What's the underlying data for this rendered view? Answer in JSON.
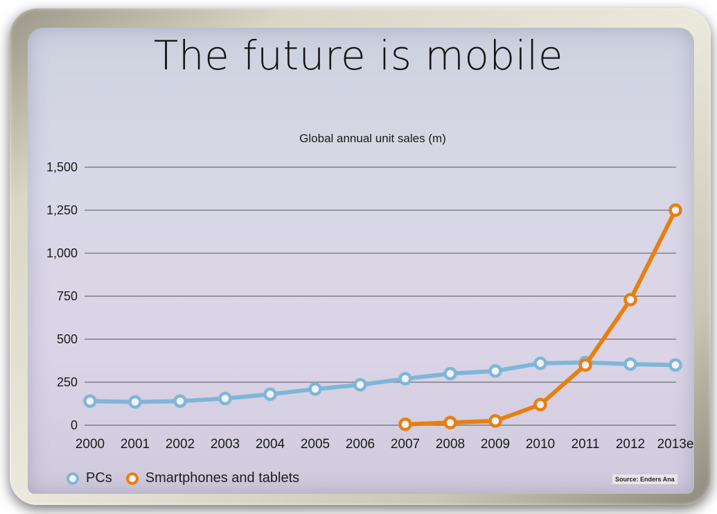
{
  "slide": {
    "title": "The future is mobile",
    "source": "Source: Enders Ana"
  },
  "colors": {
    "pcs": "#7fb6d8",
    "smartphones": "#e87f10",
    "grid": "#6e6e78",
    "text": "#1a1a1a"
  },
  "chart_data": {
    "type": "line",
    "title": "Global annual unit sales (m)",
    "xlabel": "",
    "ylabel": "",
    "categories": [
      "2000",
      "2001",
      "2002",
      "2003",
      "2004",
      "2005",
      "2006",
      "2007",
      "2008",
      "2009",
      "2010",
      "2011",
      "2012",
      "2013e"
    ],
    "ylim": [
      0,
      1500
    ],
    "yticks": [
      0,
      250,
      500,
      750,
      1000,
      1250,
      1500
    ],
    "ytick_labels": [
      "0",
      "250",
      "500",
      "750",
      "1,000",
      "1,250",
      "1,500"
    ],
    "grid": true,
    "legend_position": "bottom-left",
    "series": [
      {
        "name": "PCs",
        "color": "#7fb6d8",
        "values": [
          140,
          135,
          140,
          155,
          180,
          210,
          235,
          270,
          300,
          315,
          360,
          365,
          355,
          350
        ]
      },
      {
        "name": "Smartphones and tablets",
        "color": "#e87f10",
        "values": [
          null,
          null,
          null,
          null,
          null,
          null,
          null,
          5,
          15,
          25,
          120,
          350,
          730,
          1250
        ]
      }
    ]
  }
}
